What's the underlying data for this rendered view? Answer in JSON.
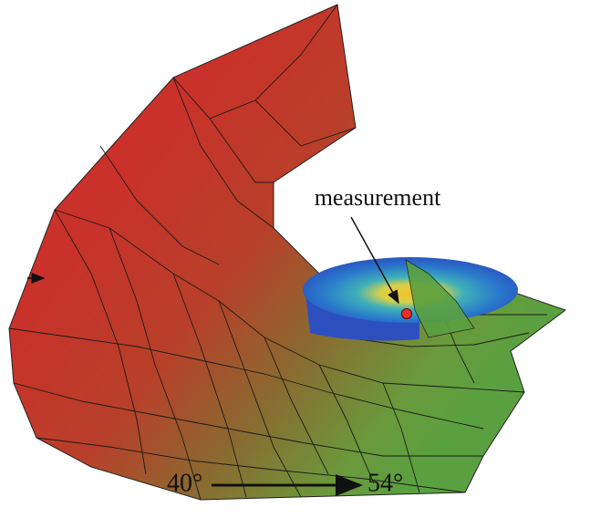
{
  "labels": {
    "measurement": "measurement",
    "start_angle": "40°",
    "end_angle": "54°"
  }
}
